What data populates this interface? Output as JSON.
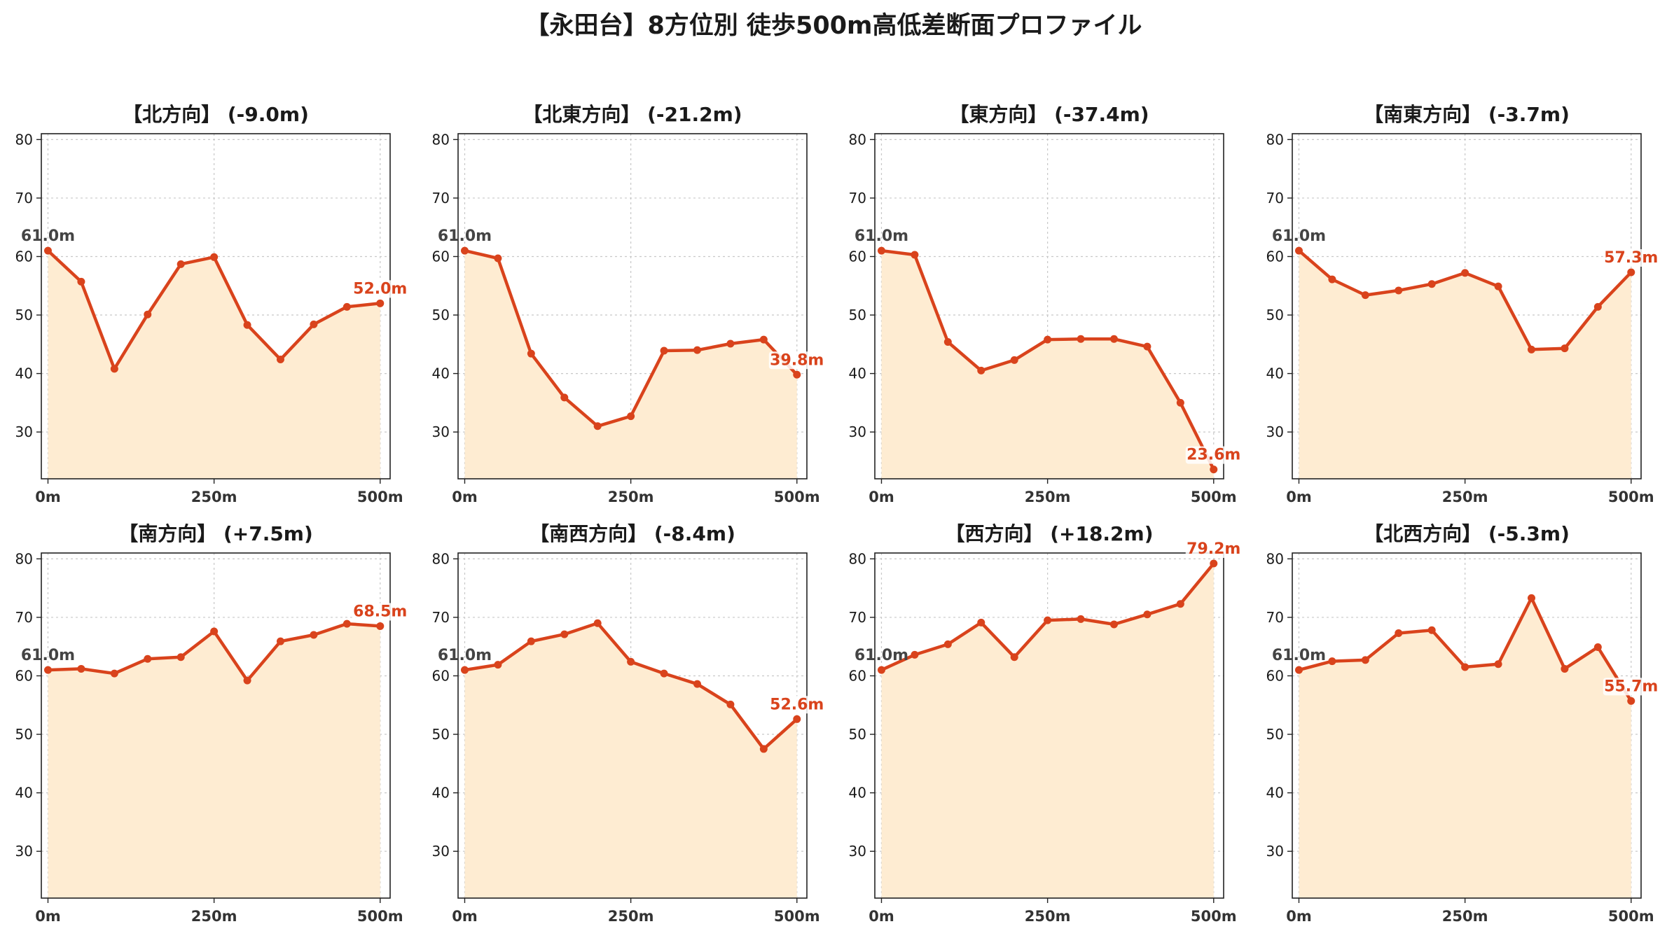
{
  "title": "【永田台】8方位別 徒歩500m高低差断面プロファイル",
  "colors": {
    "line": "#d9431c",
    "fill": "#feecd2",
    "start_label": "#444444",
    "end_label": "#d9431c",
    "grid": "#c8c8c8",
    "axis": "#222222"
  },
  "chart_data": [
    {
      "type": "area",
      "title": "【北方向】 (-9.0m)",
      "x": [
        0,
        50,
        100,
        150,
        200,
        250,
        300,
        350,
        400,
        450,
        500
      ],
      "values": [
        61.0,
        55.7,
        40.8,
        50.1,
        58.7,
        59.9,
        48.3,
        42.4,
        48.4,
        51.4,
        52.0
      ],
      "start_label": "61.0m",
      "end_label": "52.0m",
      "xticks": [
        "0m",
        "250m",
        "500m"
      ],
      "yticks": [
        30,
        40,
        50,
        60,
        70,
        80
      ],
      "xlim": [
        -10,
        515
      ],
      "ylim": [
        22,
        81
      ],
      "grid": true
    },
    {
      "type": "area",
      "title": "【北東方向】 (-21.2m)",
      "x": [
        0,
        50,
        100,
        150,
        200,
        250,
        300,
        350,
        400,
        450,
        500
      ],
      "values": [
        61.0,
        59.7,
        43.4,
        35.9,
        31.0,
        32.7,
        43.9,
        44.0,
        45.1,
        45.8,
        39.8
      ],
      "start_label": "61.0m",
      "end_label": "39.8m",
      "xticks": [
        "0m",
        "250m",
        "500m"
      ],
      "yticks": [
        30,
        40,
        50,
        60,
        70,
        80
      ],
      "xlim": [
        -10,
        515
      ],
      "ylim": [
        22,
        81
      ],
      "grid": true
    },
    {
      "type": "area",
      "title": "【東方向】 (-37.4m)",
      "x": [
        0,
        50,
        100,
        150,
        200,
        250,
        300,
        350,
        400,
        450,
        500
      ],
      "values": [
        61.0,
        60.3,
        45.4,
        40.5,
        42.3,
        45.8,
        45.9,
        45.9,
        44.6,
        35.0,
        23.6
      ],
      "start_label": "61.0m",
      "end_label": "23.6m",
      "xticks": [
        "0m",
        "250m",
        "500m"
      ],
      "yticks": [
        30,
        40,
        50,
        60,
        70,
        80
      ],
      "xlim": [
        -10,
        515
      ],
      "ylim": [
        22,
        81
      ],
      "grid": true
    },
    {
      "type": "area",
      "title": "【南東方向】 (-3.7m)",
      "x": [
        0,
        50,
        100,
        150,
        200,
        250,
        300,
        350,
        400,
        450,
        500
      ],
      "values": [
        61.0,
        56.1,
        53.4,
        54.2,
        55.3,
        57.2,
        54.9,
        44.1,
        44.3,
        51.4,
        57.3
      ],
      "start_label": "61.0m",
      "end_label": "57.3m",
      "xticks": [
        "0m",
        "250m",
        "500m"
      ],
      "yticks": [
        30,
        40,
        50,
        60,
        70,
        80
      ],
      "xlim": [
        -10,
        515
      ],
      "ylim": [
        22,
        81
      ],
      "grid": true
    },
    {
      "type": "area",
      "title": "【南方向】 (+7.5m)",
      "x": [
        0,
        50,
        100,
        150,
        200,
        250,
        300,
        350,
        400,
        450,
        500
      ],
      "values": [
        61.0,
        61.2,
        60.4,
        62.9,
        63.2,
        67.6,
        59.2,
        65.9,
        67.0,
        68.9,
        68.5
      ],
      "start_label": "61.0m",
      "end_label": "68.5m",
      "xticks": [
        "0m",
        "250m",
        "500m"
      ],
      "yticks": [
        30,
        40,
        50,
        60,
        70,
        80
      ],
      "xlim": [
        -10,
        515
      ],
      "ylim": [
        22,
        81
      ],
      "grid": true
    },
    {
      "type": "area",
      "title": "【南西方向】 (-8.4m)",
      "x": [
        0,
        50,
        100,
        150,
        200,
        250,
        300,
        350,
        400,
        450,
        500
      ],
      "values": [
        61.0,
        61.9,
        65.9,
        67.1,
        69.0,
        62.4,
        60.4,
        58.6,
        55.1,
        47.5,
        52.6
      ],
      "start_label": "61.0m",
      "end_label": "52.6m",
      "xticks": [
        "0m",
        "250m",
        "500m"
      ],
      "yticks": [
        30,
        40,
        50,
        60,
        70,
        80
      ],
      "xlim": [
        -10,
        515
      ],
      "ylim": [
        22,
        81
      ],
      "grid": true
    },
    {
      "type": "area",
      "title": "【西方向】 (+18.2m)",
      "x": [
        0,
        50,
        100,
        150,
        200,
        250,
        300,
        350,
        400,
        450,
        500
      ],
      "values": [
        61.0,
        63.6,
        65.4,
        69.1,
        63.2,
        69.5,
        69.7,
        68.8,
        70.5,
        72.3,
        79.2
      ],
      "start_label": "61.0m",
      "end_label": "79.2m",
      "xticks": [
        "0m",
        "250m",
        "500m"
      ],
      "yticks": [
        30,
        40,
        50,
        60,
        70,
        80
      ],
      "xlim": [
        -10,
        515
      ],
      "ylim": [
        22,
        81
      ],
      "grid": true
    },
    {
      "type": "area",
      "title": "【北西方向】 (-5.3m)",
      "x": [
        0,
        50,
        100,
        150,
        200,
        250,
        300,
        350,
        400,
        450,
        500
      ],
      "values": [
        61.0,
        62.5,
        62.7,
        67.3,
        67.8,
        61.5,
        62.0,
        73.3,
        61.2,
        64.9,
        55.7
      ],
      "start_label": "61.0m",
      "end_label": "55.7m",
      "xticks": [
        "0m",
        "250m",
        "500m"
      ],
      "yticks": [
        30,
        40,
        50,
        60,
        70,
        80
      ],
      "xlim": [
        -10,
        515
      ],
      "ylim": [
        22,
        81
      ],
      "grid": true
    }
  ]
}
